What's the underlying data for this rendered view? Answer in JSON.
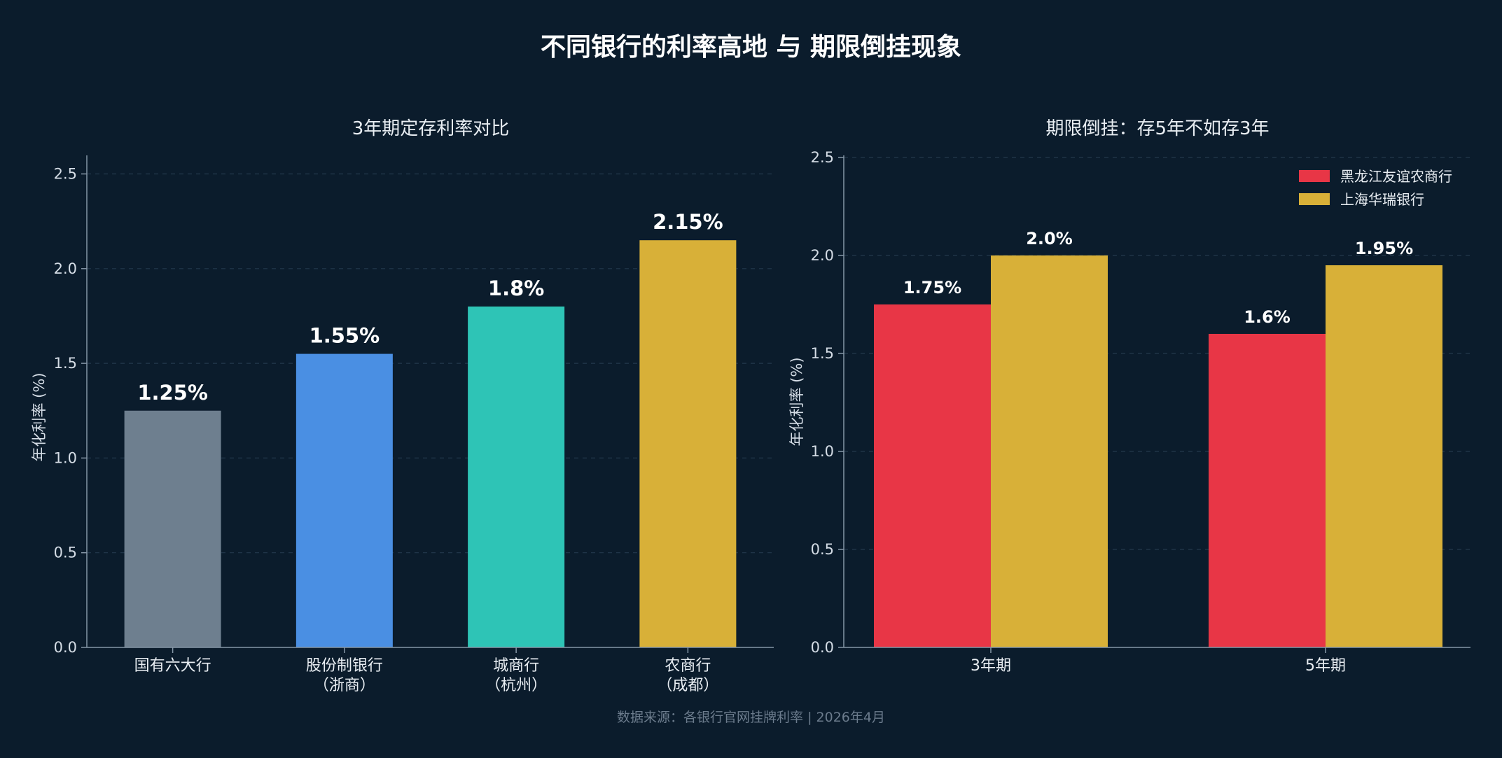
{
  "title": "不同银行的利率高地 与 期限倒挂现象",
  "source": "数据来源：各银行官网挂牌利率 | 2026年4月",
  "chart_data": [
    {
      "type": "bar",
      "title": "3年期定存利率对比",
      "ylabel": "年化利率 (%)",
      "ylim": [
        0,
        2.6
      ],
      "yticks": [
        "0.0",
        "0.5",
        "1.0",
        "1.5",
        "2.0",
        "2.5"
      ],
      "grid": true,
      "categories": [
        {
          "line1": "国有六大行",
          "line2": ""
        },
        {
          "line1": "股份制银行",
          "line2": "（浙商）"
        },
        {
          "line1": "城商行",
          "line2": "（杭州）"
        },
        {
          "line1": "农商行",
          "line2": "（成都）"
        }
      ],
      "values": [
        1.25,
        1.55,
        1.8,
        2.15
      ],
      "labels": [
        "1.25%",
        "1.55%",
        "1.8%",
        "2.15%"
      ],
      "colors": [
        "#6e7f8f",
        "#4a8fe3",
        "#2ec4b6",
        "#d8b038"
      ]
    },
    {
      "type": "bar",
      "title": "期限倒挂：存5年不如存3年",
      "ylabel": "年化利率 (%)",
      "ylim": [
        0,
        2.5
      ],
      "yticks": [
        "0.0",
        "0.5",
        "1.0",
        "1.5",
        "2.0",
        "2.5"
      ],
      "grid": true,
      "legend_position": "top-right",
      "categories": [
        "3年期",
        "5年期"
      ],
      "series": [
        {
          "name": "黑龙江友谊农商行",
          "values": [
            1.75,
            1.6
          ],
          "labels": [
            "1.75%",
            "1.6%"
          ],
          "color": "#e83646"
        },
        {
          "name": "上海华瑞银行",
          "values": [
            2.0,
            1.95
          ],
          "labels": [
            "2.0%",
            "1.95%"
          ],
          "color": "#d8b038"
        }
      ]
    }
  ]
}
